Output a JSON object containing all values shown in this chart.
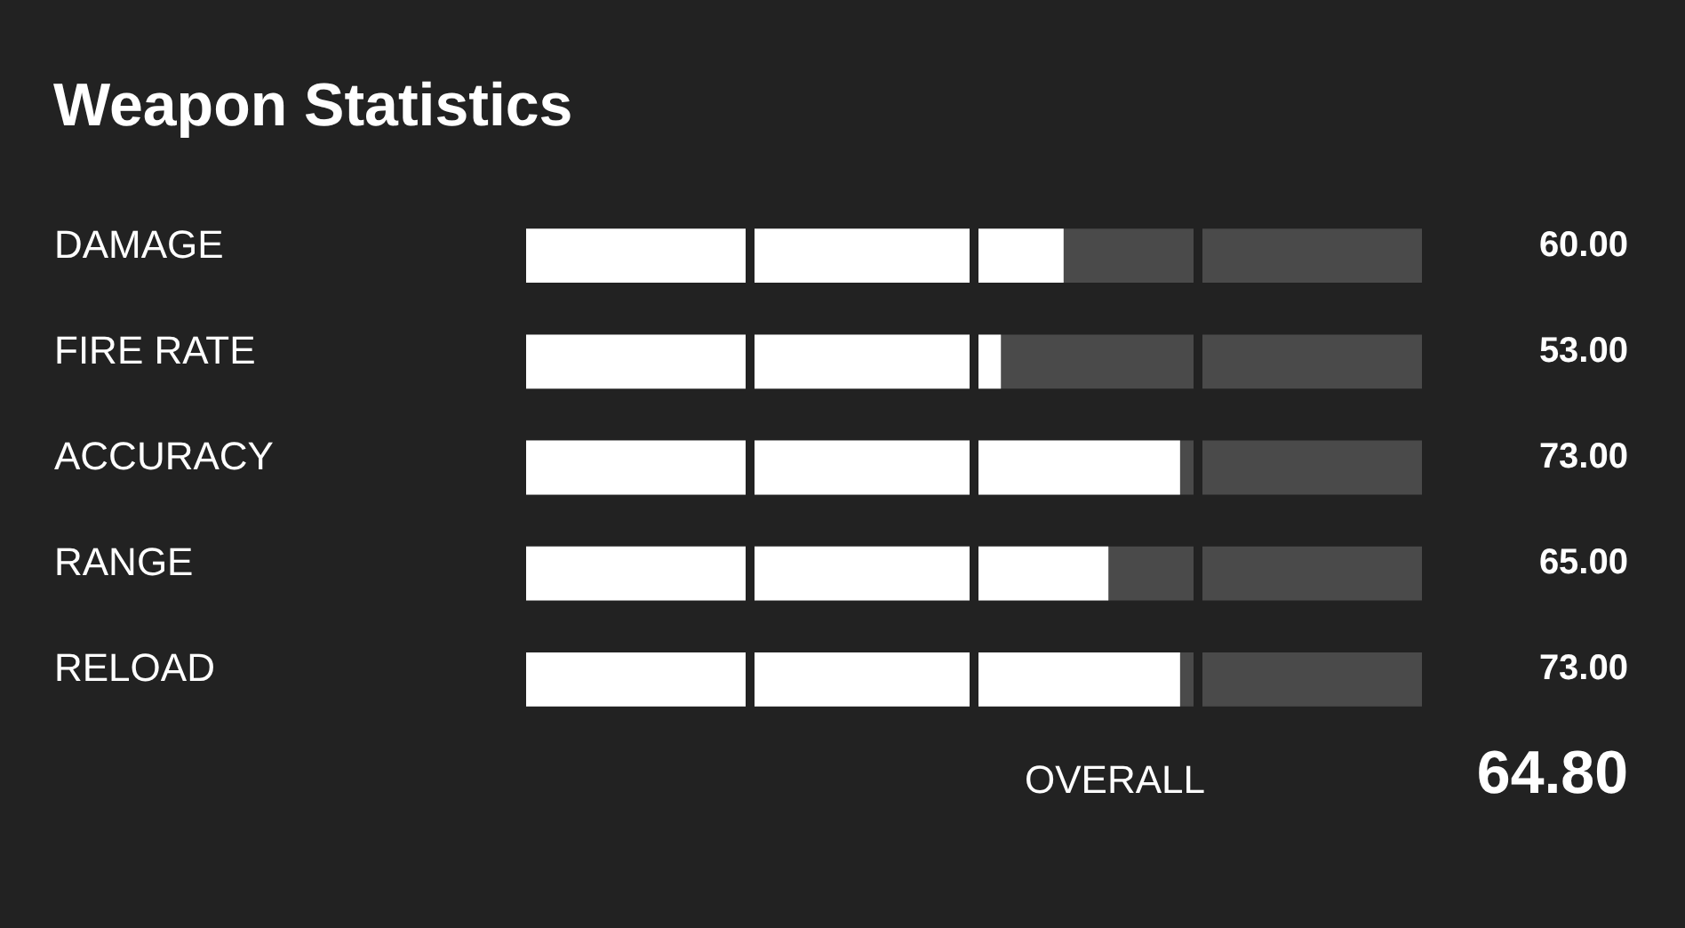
{
  "chart_data": {
    "type": "bar",
    "orientation": "horizontal",
    "title": "Weapon Statistics",
    "categories": [
      "DAMAGE",
      "FIRE RATE",
      "ACCURACY",
      "RANGE",
      "RELOAD"
    ],
    "values": [
      60,
      53,
      73,
      65,
      73
    ],
    "color": "#ffffff",
    "xlim": [
      0,
      100
    ],
    "xticks": [
      {
        "value": 25,
        "label": null
      },
      {
        "value": 50,
        "label": null
      },
      {
        "value": 75,
        "label": null
      }
    ],
    "tick_labels": "y",
    "grid": "x",
    "data_labels": true,
    "value_labels": [
      "60.00",
      "53.00",
      "73.00",
      "65.00",
      "73.00"
    ],
    "annotations": [
      "OVERALL",
      "64.80"
    ]
  }
}
